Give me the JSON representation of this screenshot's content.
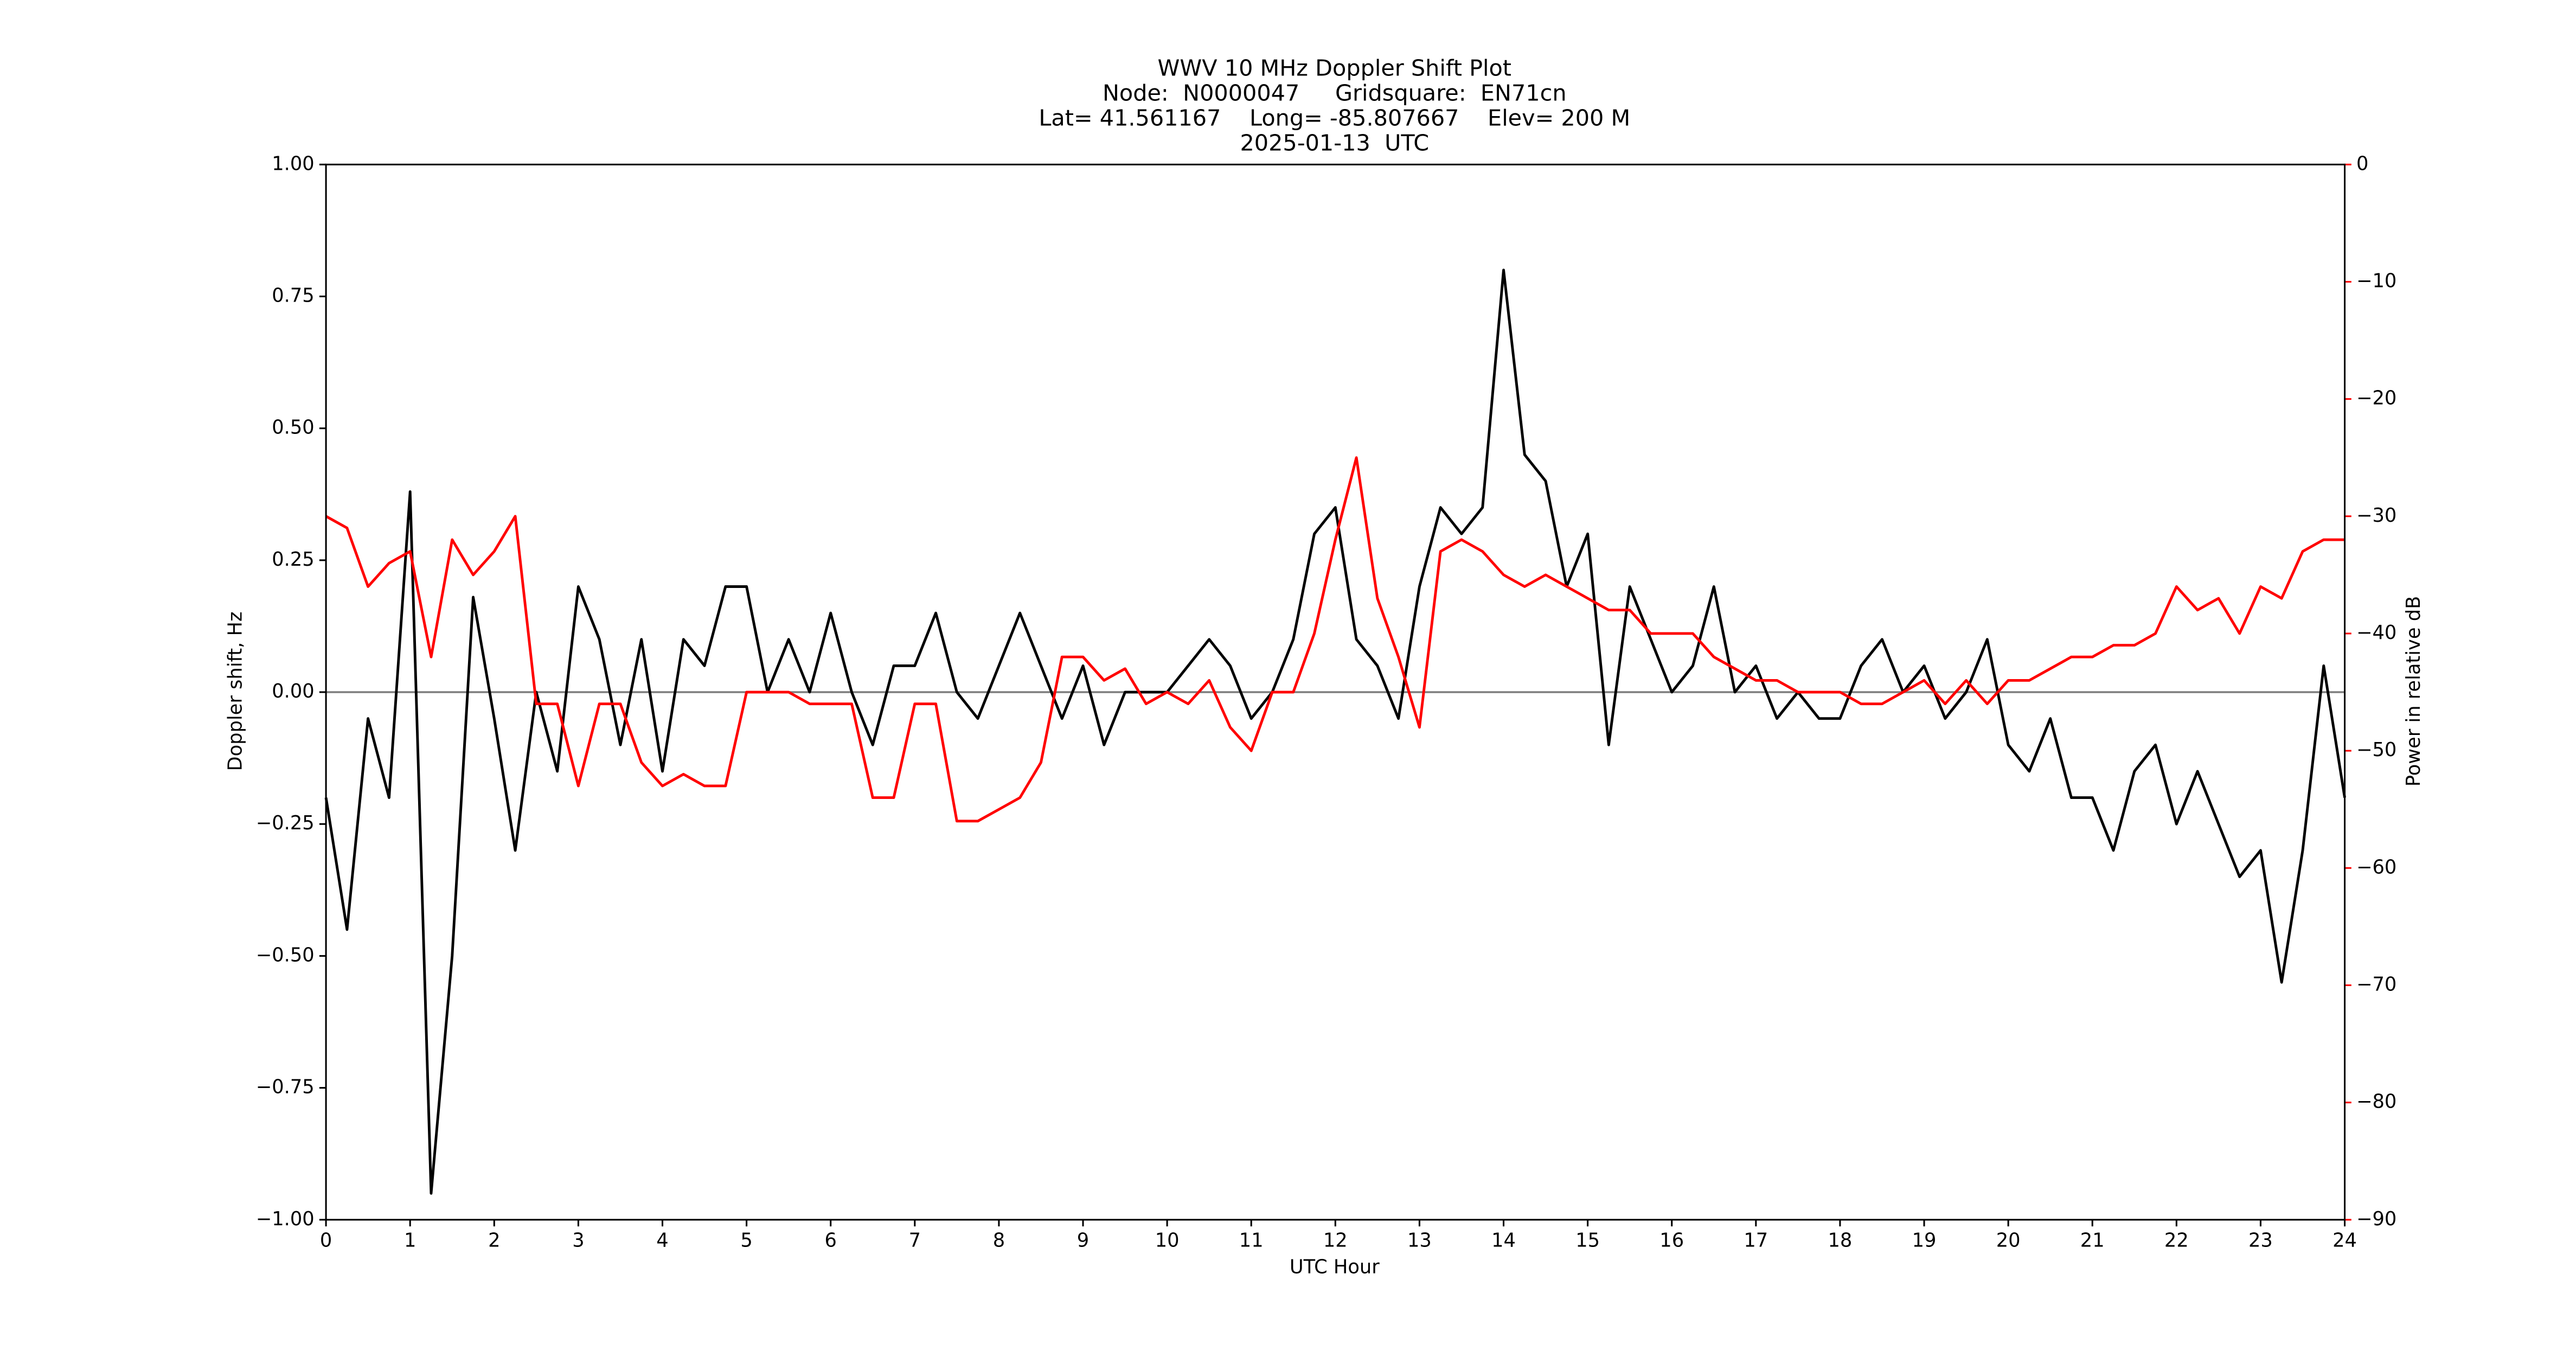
{
  "chart_data": {
    "type": "line",
    "title": [
      "WWV 10 MHz Doppler Shift Plot",
      "Node:  N0000047     Gridsquare:  EN71cn",
      "Lat= 41.561167    Long= -85.807667    Elev= 200 M",
      "2025-01-13  UTC"
    ],
    "xlabel": "UTC Hour",
    "ylabel": "Doppler shift, Hz",
    "y2label": "Power in relative dB",
    "y2color": "#ff0000",
    "x": [
      0,
      0.25,
      0.5,
      0.75,
      1,
      1.25,
      1.5,
      1.75,
      2,
      2.25,
      2.5,
      2.75,
      3,
      3.25,
      3.5,
      3.75,
      4,
      4.25,
      4.5,
      4.75,
      5,
      5.25,
      5.5,
      5.75,
      6,
      6.25,
      6.5,
      6.75,
      7,
      7.25,
      7.5,
      7.75,
      8,
      8.25,
      8.5,
      8.75,
      9,
      9.25,
      9.5,
      9.75,
      10,
      10.25,
      10.5,
      10.75,
      11,
      11.25,
      11.5,
      11.75,
      12,
      12.25,
      12.5,
      12.75,
      13,
      13.25,
      13.5,
      13.75,
      14,
      14.25,
      14.5,
      14.75,
      15,
      15.25,
      15.5,
      15.75,
      16,
      16.25,
      16.5,
      16.75,
      17,
      17.25,
      17.5,
      17.75,
      18,
      18.25,
      18.5,
      18.75,
      19,
      19.25,
      19.5,
      19.75,
      20,
      20.25,
      20.5,
      20.75,
      21,
      21.25,
      21.5,
      21.75,
      22,
      22.25,
      22.5,
      22.75,
      23,
      23.25,
      23.5,
      23.75,
      24
    ],
    "series": [
      {
        "color": "#000000",
        "values": [
          -0.2,
          -0.45,
          -0.05,
          -0.2,
          0.38,
          -0.95,
          -0.5,
          0.18,
          -0.05,
          -0.3,
          0.0,
          -0.15,
          0.2,
          0.1,
          -0.1,
          0.1,
          -0.15,
          0.1,
          0.05,
          0.2,
          0.2,
          0.0,
          0.1,
          0.0,
          0.15,
          0.0,
          -0.1,
          0.05,
          0.05,
          0.15,
          0.0,
          -0.05,
          0.05,
          0.15,
          0.05,
          -0.05,
          0.05,
          -0.1,
          0.0,
          0.0,
          0.0,
          0.05,
          0.1,
          0.05,
          -0.05,
          0.0,
          0.1,
          0.3,
          0.35,
          0.1,
          0.05,
          -0.05,
          0.2,
          0.35,
          0.3,
          0.35,
          0.8,
          0.45,
          0.4,
          0.2,
          0.3,
          -0.1,
          0.2,
          0.1,
          0.0,
          0.05,
          0.2,
          0.0,
          0.05,
          -0.05,
          0.0,
          -0.05,
          -0.05,
          0.05,
          0.1,
          0.0,
          0.05,
          -0.05,
          0.0,
          0.1,
          -0.1,
          -0.15,
          -0.05,
          -0.2,
          -0.2,
          -0.3,
          -0.15,
          -0.1,
          -0.25,
          -0.15,
          -0.25,
          -0.35,
          -0.3,
          -0.55,
          -0.3,
          0.05,
          -0.2
        ]
      },
      {
        "color": "#ff0000",
        "axis": "y2",
        "values": [
          -30,
          -31,
          -36,
          -34,
          -33,
          -42,
          -32,
          -35,
          -33,
          -30,
          -46,
          -46,
          -53,
          -46,
          -46,
          -51,
          -53,
          -52,
          -53,
          -53,
          -45,
          -45,
          -45,
          -46,
          -46,
          -46,
          -54,
          -54,
          -46,
          -46,
          -56,
          -56,
          -55,
          -54,
          -51,
          -42,
          -42,
          -44,
          -43,
          -46,
          -45,
          -46,
          -44,
          -48,
          -50,
          -45,
          -45,
          -40,
          -32,
          -25,
          -37,
          -42,
          -48,
          -33,
          -32,
          -33,
          -35,
          -36,
          -35,
          -36,
          -37,
          -38,
          -38,
          -40,
          -40,
          -40,
          -42,
          -43,
          -44,
          -44,
          -45,
          -45,
          -45,
          -46,
          -46,
          -45,
          -44,
          -46,
          -44,
          -46,
          -44,
          -44,
          -43,
          -42,
          -42,
          -41,
          -41,
          -40,
          -36,
          -38,
          -37,
          -40,
          -36,
          -37,
          -33,
          -32,
          -32
        ]
      }
    ],
    "xlim": [
      0,
      24
    ],
    "xticks": [
      0,
      1,
      2,
      3,
      4,
      5,
      6,
      7,
      8,
      9,
      10,
      11,
      12,
      13,
      14,
      15,
      16,
      17,
      18,
      19,
      20,
      21,
      22,
      23,
      24
    ],
    "ylim": [
      -1,
      1
    ],
    "yticks": [
      {
        "value": -1,
        "label": "−1.00"
      },
      {
        "value": -0.75,
        "label": "−0.75"
      },
      {
        "value": -0.5,
        "label": "−0.50"
      },
      {
        "value": -0.25,
        "label": "−0.25"
      },
      {
        "value": 0,
        "label": "0.00"
      },
      {
        "value": 0.25,
        "label": "0.25"
      },
      {
        "value": 0.5,
        "label": "0.50"
      },
      {
        "value": 0.75,
        "label": "0.75"
      },
      {
        "value": 1,
        "label": "1.00"
      }
    ],
    "y2lim": [
      -90,
      0
    ],
    "y2ticks": [
      {
        "value": -90,
        "label": "−90"
      },
      {
        "value": -80,
        "label": "−80"
      },
      {
        "value": -70,
        "label": "−70"
      },
      {
        "value": -60,
        "label": "−60"
      },
      {
        "value": -50,
        "label": "−50"
      },
      {
        "value": -40,
        "label": "−40"
      },
      {
        "value": -30,
        "label": "−30"
      },
      {
        "value": -20,
        "label": "−20"
      },
      {
        "value": -10,
        "label": "−10"
      },
      0
    ],
    "grid": false
  }
}
